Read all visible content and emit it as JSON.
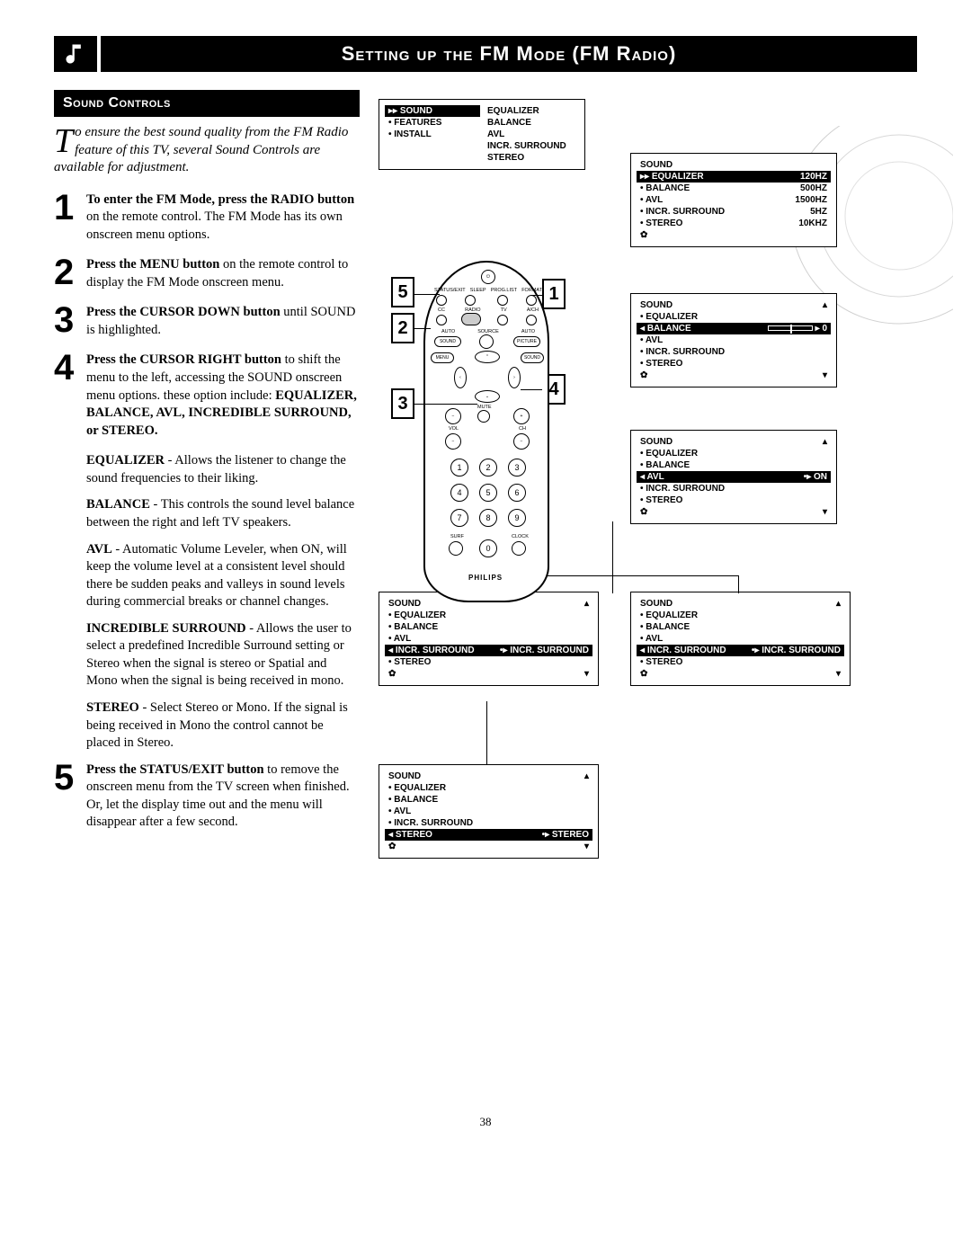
{
  "page": {
    "title": "Setting up the FM Mode (FM Radio)",
    "subheader": "Sound Controls",
    "page_number": "38"
  },
  "intro": {
    "dropcap": "T",
    "text": "o ensure the best sound quality from the FM Radio feature of this TV, several Sound Controls are available for adjustment."
  },
  "steps": [
    {
      "num": "1",
      "body": "<b>To enter the FM Mode, press the RADIO button</b> on the remote control. The FM Mode has its own onscreen menu options."
    },
    {
      "num": "2",
      "body": "<b>Press the MENU button</b> on the remote control to display the FM Mode onscreen menu."
    },
    {
      "num": "3",
      "body": "<b>Press the CURSOR DOWN button</b> until SOUND is highlighted."
    },
    {
      "num": "4",
      "body": "<b>Press the CURSOR RIGHT button</b> to shift the menu to the left, accessing the SOUND onscreen menu options. these option include: <b>EQUALIZER, BALANCE, AVL, INCREDIBLE SURROUND, or STEREO.</b>"
    }
  ],
  "step4_detail": [
    "<b>EQUALIZER</b> - Allows the listener to change the sound frequencies to their liking.",
    "<b>BALANCE</b> - This controls the sound level balance between the right and left TV speakers.",
    "<b>AVL</b> - Automatic Volume Leveler, when ON, will keep the volume level at a consistent level should there be sudden peaks and valleys in sound levels during commercial breaks or channel changes.",
    "<b>INCREDIBLE SURROUND</b> - Allows the user to select a predefined Incredible Surround setting or Stereo when the signal is stereo or Spatial and Mono when the signal is being received in mono.",
    "<b>STEREO</b> - Select Stereo or Mono. If the signal is being received in Mono the control cannot be placed in Stereo."
  ],
  "step5": {
    "num": "5",
    "body": "<b>Press the STATUS/EXIT button</b> to remove the onscreen menu from the TV screen when finished. Or, let the display time out and the menu will disappear after a few second."
  },
  "menu_main": {
    "left": [
      "SOUND",
      "FEATURES",
      "INSTALL"
    ],
    "right": [
      "EQUALIZER",
      "BALANCE",
      "AVL",
      "INCR. SURROUND",
      "STEREO"
    ],
    "selected_left": "SOUND"
  },
  "menu_equalizer": {
    "title": "SOUND",
    "items": [
      "EQUALIZER",
      "BALANCE",
      "AVL",
      "INCR. SURROUND",
      "STEREO"
    ],
    "values": [
      "120HZ",
      "500HZ",
      "1500HZ",
      "5HZ",
      "10KHZ"
    ],
    "highlighted": "EQUALIZER"
  },
  "menu_balance": {
    "title": "SOUND",
    "items": [
      "EQUALIZER",
      "BALANCE",
      "AVL",
      "INCR. SURROUND",
      "STEREO"
    ],
    "highlighted": "BALANCE",
    "value": "0"
  },
  "menu_avl": {
    "title": "SOUND",
    "items": [
      "EQUALIZER",
      "BALANCE",
      "AVL",
      "INCR. SURROUND",
      "STEREO"
    ],
    "highlighted": "AVL",
    "value": "ON"
  },
  "menu_incr_left": {
    "title": "SOUND",
    "items": [
      "EQUALIZER",
      "BALANCE",
      "AVL",
      "INCR. SURROUND",
      "STEREO"
    ],
    "highlighted": "INCR. SURROUND",
    "value": "INCR. SURROUND"
  },
  "menu_incr_right": {
    "title": "SOUND",
    "items": [
      "EQUALIZER",
      "BALANCE",
      "AVL",
      "INCR. SURROUND",
      "STEREO"
    ],
    "highlighted": "INCR. SURROUND",
    "value": "INCR. SURROUND"
  },
  "menu_stereo": {
    "title": "SOUND",
    "items": [
      "EQUALIZER",
      "BALANCE",
      "AVL",
      "INCR. SURROUND",
      "STEREO"
    ],
    "highlighted": "STEREO",
    "value": "STEREO"
  },
  "callouts": [
    "1",
    "2",
    "3",
    "4",
    "5"
  ],
  "remote": {
    "brand": "PHILIPS",
    "top_labels": [
      "STATUS/EXIT",
      "SLEEP",
      "PROG.LIST",
      "FORMAT"
    ],
    "row2_labels": [
      "CC",
      "RADIO",
      "TV",
      "A/CH"
    ],
    "mid_labels": [
      "AUTO",
      "SOURCE",
      "AUTO"
    ],
    "side_buttons_left": "SOUND",
    "side_buttons_right": "PICTURE",
    "menu_label": "MENU",
    "sound_label": "SOUND",
    "mute": "MUTE",
    "vol": "VOL",
    "ch": "CH",
    "numpad": [
      "1",
      "2",
      "3",
      "4",
      "5",
      "6",
      "7",
      "8",
      "9",
      "0"
    ],
    "surf": "SURF",
    "clock": "CLOCK"
  },
  "colors": {
    "bg": "#ffffff",
    "ink": "#000000"
  }
}
